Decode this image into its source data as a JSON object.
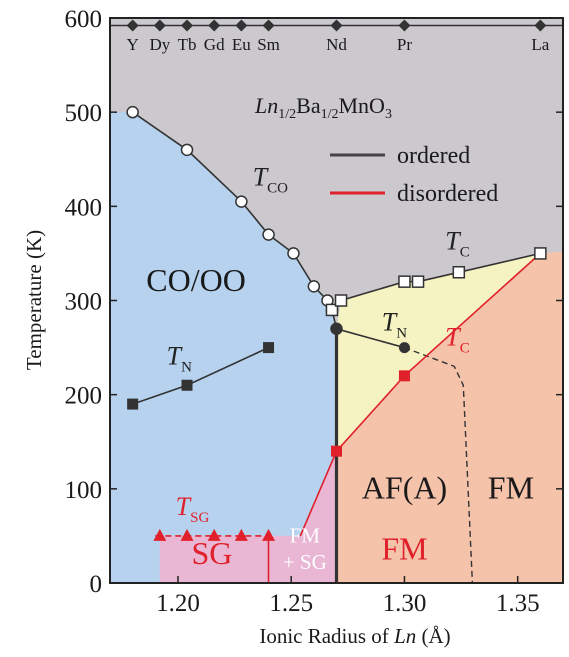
{
  "chart_data": {
    "type": "scatter",
    "title": "Ln1/2Ba1/2MnO3",
    "title_parts": {
      "ln": "Ln",
      "sub1": "1/2",
      "ba": "Ba",
      "sub2": "1/2",
      "rest": "MnO",
      "sub3": "3"
    },
    "xlabel": "Ionic Radius of Ln (Å)",
    "xlabel_parts": {
      "pre": "Ionic Radius of ",
      "ln": "Ln",
      "post": " (Å)"
    },
    "ylabel": "Temperature (K)",
    "xlim": [
      1.17,
      1.37
    ],
    "ylim": [
      0,
      600
    ],
    "xticks": [
      1.2,
      1.25,
      1.3,
      1.35
    ],
    "xtick_labels": [
      "1.20",
      "1.25",
      "1.30",
      "1.35"
    ],
    "yticks": [
      0,
      100,
      200,
      300,
      400,
      500,
      600
    ],
    "ytick_labels": [
      "0",
      "100",
      "200",
      "300",
      "400",
      "500",
      "600"
    ],
    "grid": false,
    "legend_position": "top-right",
    "legend": [
      {
        "label": "ordered",
        "color": "#444444"
      },
      {
        "label": "disordered",
        "color": "#e0202a"
      }
    ],
    "top_elements": [
      {
        "label": "Y",
        "x": 1.18
      },
      {
        "label": "Dy",
        "x": 1.192
      },
      {
        "label": "Tb",
        "x": 1.204
      },
      {
        "label": "Gd",
        "x": 1.216
      },
      {
        "label": "Eu",
        "x": 1.228
      },
      {
        "label": "Sm",
        "x": 1.24
      },
      {
        "label": "Nd",
        "x": 1.27
      },
      {
        "label": "Pr",
        "x": 1.3
      },
      {
        "label": "La",
        "x": 1.36
      }
    ],
    "series": [
      {
        "key": "T_CO",
        "marker": "open-circle",
        "color": "#333333",
        "x": [
          1.18,
          1.204,
          1.228,
          1.24,
          1.251,
          1.26,
          1.266,
          1.268,
          1.27
        ],
        "y": [
          500,
          460,
          405,
          370,
          350,
          315,
          300,
          290,
          270
        ]
      },
      {
        "key": "T_C",
        "marker": "open-square",
        "color": "#333333",
        "x": [
          1.268,
          1.272,
          1.3,
          1.306,
          1.324,
          1.36
        ],
        "y": [
          290,
          300,
          320,
          320,
          330,
          350
        ]
      },
      {
        "key": "T_N_SG_region",
        "marker": "filled-square",
        "color": "#333333",
        "x": [
          1.18,
          1.204,
          1.24
        ],
        "y": [
          190,
          210,
          250
        ]
      },
      {
        "key": "T_N_AF",
        "marker": "filled-circle",
        "color": "#333333",
        "x": [
          1.27,
          1.3
        ],
        "y": [
          270,
          250
        ]
      },
      {
        "key": "T_C_disordered",
        "marker": "filled-square",
        "color": "#e0202a",
        "x": [
          1.27,
          1.3
        ],
        "y": [
          140,
          220
        ]
      },
      {
        "key": "T_SG",
        "marker": "filled-triangle",
        "color": "#e0202a",
        "x": [
          1.192,
          1.204,
          1.216,
          1.228,
          1.24
        ],
        "y": [
          50,
          50,
          50,
          50,
          50
        ]
      }
    ],
    "curve_labels": [
      {
        "key": "tco",
        "base": "T",
        "sub": "CO",
        "color": "#222222",
        "x": 1.233,
        "y": 422
      },
      {
        "key": "tc_ordered",
        "base": "T",
        "sub": "C",
        "color": "#222222",
        "x": 1.318,
        "y": 354
      },
      {
        "key": "tn_left",
        "base": "T",
        "sub": "N",
        "color": "#222222",
        "x": 1.195,
        "y": 232
      },
      {
        "key": "tn_right",
        "base": "T",
        "sub": "N",
        "color": "#222222",
        "x": 1.29,
        "y": 268
      },
      {
        "key": "tc_disordered",
        "base": "T",
        "sub": "C",
        "color": "#e0202a",
        "x": 1.318,
        "y": 252
      },
      {
        "key": "tsg",
        "base": "T",
        "sub": "SG",
        "color": "#e0202a",
        "x": 1.199,
        "y": 72
      }
    ],
    "region_labels": [
      {
        "key": "coo",
        "text": "CO/OO",
        "x": 1.208,
        "y": 310
      },
      {
        "key": "sg",
        "text": "SG",
        "x": 1.215,
        "y": 20
      },
      {
        "key": "fm_sg_1",
        "text": "FM",
        "x": 1.256,
        "y": 43
      },
      {
        "key": "fm_sg_2",
        "text": "+ SG",
        "x": 1.256,
        "y": 15
      },
      {
        "key": "afa",
        "text": "AF(A)",
        "x": 1.3,
        "y": 90
      },
      {
        "key": "fm_right",
        "text": "FM",
        "x": 1.347,
        "y": 90
      },
      {
        "key": "fm_red",
        "text": "FM",
        "x": 1.3,
        "y": 25
      }
    ],
    "region_colors": {
      "gray": "#cbc8ce",
      "blue": "#b6d2ee",
      "yellow": "#f6f3c3",
      "salmon": "#f5c2aa",
      "pink": "#e9b6d4",
      "red": "#e0202a",
      "dark": "#333333"
    }
  }
}
